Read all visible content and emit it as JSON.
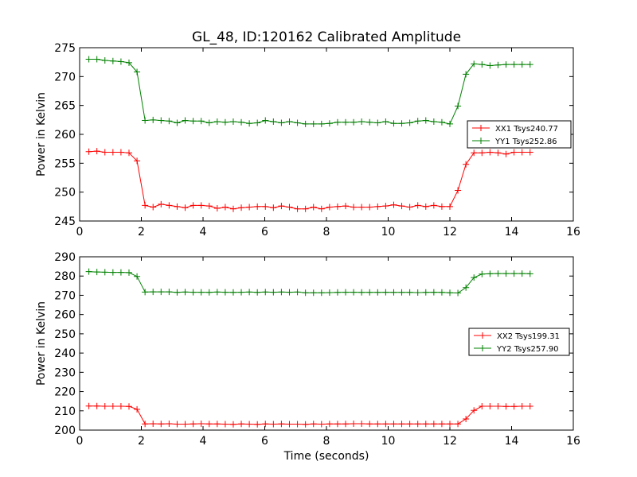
{
  "figure": {
    "title": "GL_48, ID:120162 Calibrated Amplitude"
  },
  "chart_data": [
    {
      "type": "line",
      "xlabel": "",
      "ylabel": "Power in Kelvin",
      "xlim": [
        0,
        16
      ],
      "ylim": [
        245,
        275
      ],
      "xticks": [
        0,
        2,
        4,
        6,
        8,
        10,
        12,
        14,
        16
      ],
      "yticks": [
        245,
        250,
        255,
        260,
        265,
        270,
        275
      ],
      "grid": false,
      "legend_position": "right",
      "x": [
        0.3,
        0.56,
        0.82,
        1.08,
        1.34,
        1.6,
        1.86,
        2.12,
        2.38,
        2.64,
        2.9,
        3.16,
        3.42,
        3.68,
        3.94,
        4.2,
        4.46,
        4.72,
        4.98,
        5.24,
        5.5,
        5.76,
        6.02,
        6.28,
        6.54,
        6.8,
        7.06,
        7.32,
        7.58,
        7.84,
        8.1,
        8.36,
        8.62,
        8.88,
        9.14,
        9.4,
        9.66,
        9.92,
        10.18,
        10.44,
        10.7,
        10.96,
        11.22,
        11.48,
        11.74,
        12.0,
        12.26,
        12.52,
        12.78,
        13.04,
        13.3,
        13.56,
        13.82,
        14.08,
        14.34,
        14.6
      ],
      "series": [
        {
          "name": "XX1 Tsys240.77",
          "color": "#ff0000",
          "values": [
            257.0,
            257.1,
            256.9,
            256.9,
            256.9,
            256.8,
            255.4,
            247.7,
            247.4,
            247.9,
            247.7,
            247.5,
            247.3,
            247.7,
            247.7,
            247.6,
            247.2,
            247.4,
            247.1,
            247.3,
            247.4,
            247.5,
            247.5,
            247.3,
            247.6,
            247.4,
            247.1,
            247.1,
            247.4,
            247.1,
            247.4,
            247.5,
            247.6,
            247.4,
            247.4,
            247.4,
            247.5,
            247.6,
            247.8,
            247.6,
            247.4,
            247.7,
            247.5,
            247.7,
            247.5,
            247.5,
            250.3,
            254.8,
            256.8,
            256.8,
            256.9,
            256.8,
            256.6,
            256.9,
            256.9,
            256.9
          ]
        },
        {
          "name": "YY1 Tsys252.86",
          "color": "#008000",
          "values": [
            273.0,
            273.0,
            272.8,
            272.7,
            272.6,
            272.4,
            270.8,
            262.4,
            262.5,
            262.4,
            262.3,
            262.0,
            262.4,
            262.3,
            262.3,
            262.0,
            262.2,
            262.1,
            262.2,
            262.1,
            261.9,
            262.0,
            262.4,
            262.2,
            262.0,
            262.2,
            262.0,
            261.8,
            261.8,
            261.8,
            261.9,
            262.1,
            262.1,
            262.1,
            262.2,
            262.1,
            262.0,
            262.2,
            261.9,
            261.9,
            262.0,
            262.3,
            262.4,
            262.2,
            262.1,
            261.8,
            264.9,
            270.4,
            272.2,
            272.1,
            271.9,
            272.0,
            272.1,
            272.1,
            272.1,
            272.1
          ]
        }
      ]
    },
    {
      "type": "line",
      "xlabel": "Time (seconds)",
      "ylabel": "Power in Kelvin",
      "xlim": [
        0,
        16
      ],
      "ylim": [
        200,
        290
      ],
      "xticks": [
        0,
        2,
        4,
        6,
        8,
        10,
        12,
        14,
        16
      ],
      "yticks": [
        200,
        210,
        220,
        230,
        240,
        250,
        260,
        270,
        280,
        290
      ],
      "grid": false,
      "legend_position": "right",
      "x": [
        0.3,
        0.56,
        0.82,
        1.08,
        1.34,
        1.6,
        1.86,
        2.12,
        2.38,
        2.64,
        2.9,
        3.16,
        3.42,
        3.68,
        3.94,
        4.2,
        4.46,
        4.72,
        4.98,
        5.24,
        5.5,
        5.76,
        6.02,
        6.28,
        6.54,
        6.8,
        7.06,
        7.32,
        7.58,
        7.84,
        8.1,
        8.36,
        8.62,
        8.88,
        9.14,
        9.4,
        9.66,
        9.92,
        10.18,
        10.44,
        10.7,
        10.96,
        11.22,
        11.48,
        11.74,
        12.0,
        12.26,
        12.52,
        12.78,
        13.04,
        13.3,
        13.56,
        13.82,
        14.08,
        14.34,
        14.6
      ],
      "series": [
        {
          "name": "XX2 Tsys199.31",
          "color": "#ff0000",
          "values": [
            212.5,
            212.5,
            212.4,
            212.4,
            212.4,
            212.3,
            210.8,
            203.2,
            203.3,
            203.2,
            203.3,
            203.1,
            203.1,
            203.2,
            203.3,
            203.2,
            203.2,
            203.1,
            203.0,
            203.2,
            203.1,
            203.0,
            203.2,
            203.1,
            203.2,
            203.1,
            203.1,
            203.0,
            203.2,
            203.1,
            203.2,
            203.2,
            203.2,
            203.3,
            203.3,
            203.2,
            203.2,
            203.2,
            203.2,
            203.2,
            203.2,
            203.2,
            203.2,
            203.2,
            203.2,
            203.2,
            203.2,
            205.8,
            210.2,
            212.4,
            212.4,
            212.4,
            212.3,
            212.3,
            212.4,
            212.4
          ]
        },
        {
          "name": "YY2 Tsys257.90",
          "color": "#008000",
          "values": [
            282.3,
            282.1,
            282.0,
            281.9,
            281.9,
            281.8,
            279.8,
            271.7,
            271.8,
            271.8,
            271.8,
            271.5,
            271.7,
            271.6,
            271.6,
            271.5,
            271.7,
            271.6,
            271.5,
            271.6,
            271.7,
            271.5,
            271.7,
            271.6,
            271.7,
            271.6,
            271.7,
            271.3,
            271.3,
            271.3,
            271.4,
            271.5,
            271.6,
            271.6,
            271.5,
            271.5,
            271.5,
            271.6,
            271.5,
            271.5,
            271.5,
            271.4,
            271.5,
            271.6,
            271.5,
            271.3,
            271.2,
            274.0,
            279.2,
            281.0,
            281.2,
            281.3,
            281.3,
            281.3,
            281.3,
            281.2
          ]
        }
      ]
    }
  ]
}
